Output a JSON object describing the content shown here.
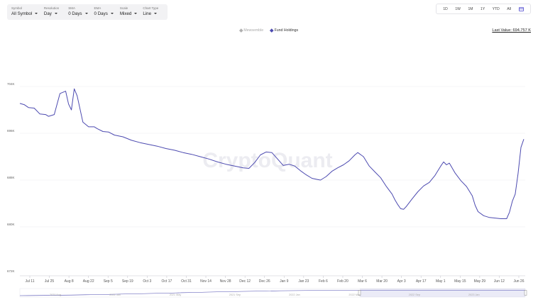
{
  "controls": [
    {
      "label": "Symbol",
      "value": "All Symbol"
    },
    {
      "label": "Resolution",
      "value": "Day"
    },
    {
      "label": "SMA",
      "value": "0 Days"
    },
    {
      "label": "EMA",
      "value": "0 Days"
    },
    {
      "label": "Scale",
      "value": "Mixed"
    },
    {
      "label": "Chart Type",
      "value": "Line"
    }
  ],
  "ranges": [
    "1D",
    "1W",
    "1M",
    "1Y",
    "YTD",
    "All"
  ],
  "legend": [
    {
      "name": "Mewsemble",
      "color": "#b0b0b0",
      "active": false
    },
    {
      "name": "Fund Holdings",
      "color": "#4c4ab0",
      "active": true
    }
  ],
  "last_value_text": "Last Value: 694.757 K",
  "watermark": "CryptoQuant",
  "navigator": {
    "labels": [
      "2020 Aug",
      "2021 Jan",
      "2021 May",
      "2021 Sep",
      "2022 Jan",
      "2022 May",
      "2022 Sep",
      "2023 Jan"
    ]
  },
  "chart_data": {
    "type": "line",
    "title": "",
    "xlabel": "",
    "ylabel": "",
    "y_ticks": [
      "704K",
      "696K",
      "688K",
      "680K",
      "672K"
    ],
    "x_ticks": [
      "Jul 11",
      "Jul 25",
      "Aug 8",
      "Aug 22",
      "Sep 5",
      "Sep 19",
      "Oct 3",
      "Oct 17",
      "Oct 31",
      "Nov 14",
      "Nov 28",
      "Dec 12",
      "Dec 26",
      "Jan 9",
      "Jan 23",
      "Feb 6",
      "Feb 20",
      "Mar 6",
      "Mar 20",
      "Apr 3",
      "Apr 17",
      "May 1",
      "May 15",
      "May 29",
      "Jun 12",
      "Jun 26"
    ],
    "ylim": [
      672,
      704
    ],
    "grid": true,
    "series": [
      {
        "name": "Fund Holdings",
        "color": "#4c4ab0",
        "points": [
          [
            0,
            701.1
          ],
          [
            1.5,
            700.9
          ],
          [
            3,
            700.4
          ],
          [
            5,
            700.3
          ],
          [
            7,
            699.3
          ],
          [
            9,
            699.2
          ],
          [
            10,
            698.9
          ],
          [
            12,
            699.2
          ],
          [
            14,
            702.8
          ],
          [
            16,
            703.2
          ],
          [
            17,
            701.0
          ],
          [
            18,
            700.0
          ],
          [
            19,
            703.6
          ],
          [
            20,
            702.4
          ],
          [
            22,
            697.9
          ],
          [
            24,
            697.1
          ],
          [
            26,
            697.1
          ],
          [
            27,
            696.8
          ],
          [
            29,
            696.3
          ],
          [
            31,
            696.2
          ],
          [
            33,
            695.7
          ],
          [
            36,
            695.4
          ],
          [
            39,
            694.8
          ],
          [
            42,
            694.4
          ],
          [
            45,
            694.1
          ],
          [
            48,
            693.8
          ],
          [
            51,
            693.4
          ],
          [
            54,
            693.1
          ],
          [
            57,
            692.7
          ],
          [
            60,
            692.4
          ],
          [
            63,
            692.0
          ],
          [
            66,
            691.6
          ],
          [
            69,
            691.1
          ],
          [
            72,
            690.7
          ],
          [
            75,
            690.4
          ],
          [
            78,
            690.1
          ],
          [
            80,
            690.0
          ],
          [
            82,
            691.0
          ],
          [
            84,
            692.3
          ],
          [
            86,
            692.8
          ],
          [
            88,
            692.7
          ],
          [
            90,
            691.6
          ],
          [
            92,
            690.5
          ],
          [
            94,
            690.7
          ],
          [
            96,
            690.4
          ],
          [
            98,
            689.6
          ],
          [
            100,
            688.9
          ],
          [
            102,
            688.3
          ],
          [
            104,
            688.1
          ],
          [
            105,
            688.0
          ],
          [
            107,
            688.6
          ],
          [
            109,
            689.5
          ],
          [
            111,
            690.1
          ],
          [
            113,
            690.6
          ],
          [
            115,
            691.3
          ],
          [
            117,
            692.3
          ],
          [
            118,
            692.7
          ],
          [
            120,
            692.0
          ],
          [
            122,
            690.4
          ],
          [
            124,
            689.4
          ],
          [
            126,
            688.4
          ],
          [
            128,
            686.9
          ],
          [
            130,
            685.6
          ],
          [
            131,
            684.6
          ],
          [
            132,
            683.8
          ],
          [
            133,
            683.1
          ],
          [
            134,
            683.0
          ],
          [
            135,
            683.5
          ],
          [
            137,
            684.8
          ],
          [
            139,
            686.0
          ],
          [
            141,
            687.0
          ],
          [
            143,
            687.6
          ],
          [
            145,
            688.8
          ],
          [
            147,
            690.4
          ],
          [
            148,
            691.1
          ],
          [
            149,
            690.6
          ],
          [
            150,
            690.9
          ],
          [
            152,
            689.2
          ],
          [
            154,
            687.9
          ],
          [
            156,
            686.9
          ],
          [
            158,
            685.3
          ],
          [
            159,
            683.7
          ],
          [
            160,
            682.6
          ],
          [
            162,
            681.9
          ],
          [
            164,
            681.6
          ],
          [
            166,
            681.5
          ],
          [
            168,
            681.4
          ],
          [
            170,
            681.4
          ],
          [
            171,
            682.5
          ],
          [
            172,
            684.4
          ],
          [
            173,
            685.6
          ],
          [
            174,
            689.1
          ],
          [
            175,
            693.6
          ],
          [
            176,
            695.0
          ]
        ]
      }
    ]
  }
}
